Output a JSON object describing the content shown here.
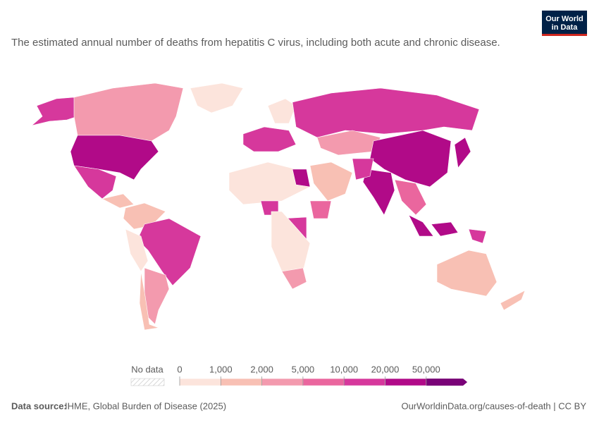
{
  "chart_data": {
    "type": "choropleth",
    "logo": [
      "Our World",
      "in Data"
    ],
    "title": "The estimated annual number of deaths from hepatitis C virus, including both acute and chronic disease.",
    "legend": {
      "no_data_label": "No data",
      "ticks": [
        0,
        {
          "value": 1000,
          "label": "1,000"
        },
        {
          "value": 2000,
          "label": "2,000"
        },
        {
          "value": 5000,
          "label": "5,000"
        },
        {
          "value": 10000,
          "label": "10,000"
        },
        {
          "value": 20000,
          "label": "20,000"
        },
        {
          "value": 50000,
          "label": "50,000"
        }
      ],
      "colors": [
        "#fce4dc",
        "#f8c0b4",
        "#f39aae",
        "#ea669e",
        "#d6389c",
        "#b10a88",
        "#7a0278"
      ]
    },
    "source_label": "Data source:",
    "source": "IHME, Global Burden of Disease (2025)",
    "url": "OurWorldinData.org/causes-of-death | CC BY"
  }
}
